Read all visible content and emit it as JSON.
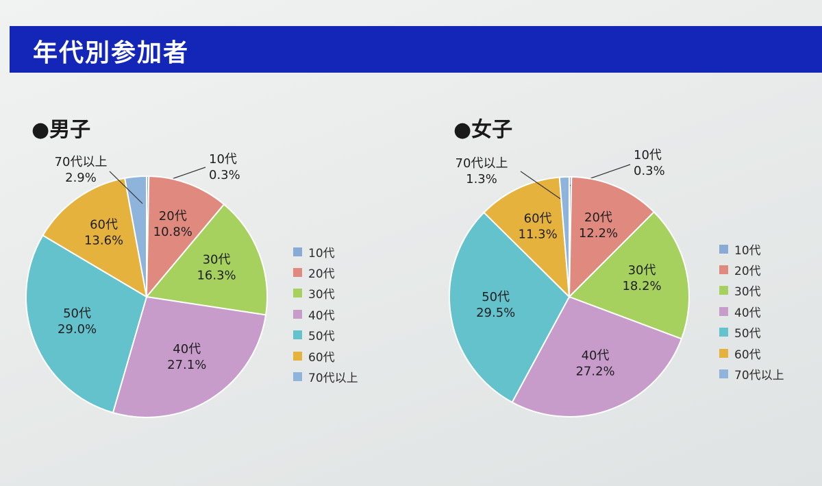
{
  "banner": {
    "title": "年代別参加者"
  },
  "chart_data": [
    {
      "type": "pie",
      "title": "●男子",
      "categories": [
        "10代",
        "20代",
        "30代",
        "40代",
        "50代",
        "60代",
        "70代以上"
      ],
      "values": [
        0.3,
        10.8,
        16.3,
        27.1,
        29.0,
        13.6,
        2.9
      ],
      "value_labels": [
        "0.3%",
        "10.8%",
        "16.3%",
        "27.1%",
        "29.0%",
        "13.6%",
        "2.9%"
      ],
      "colors": [
        "#8aaad6",
        "#e08a7f",
        "#a6d15f",
        "#c79ccb",
        "#63c2cb",
        "#e6b23e",
        "#8fb4dc"
      ],
      "legend": [
        "10代",
        "20代",
        "30代",
        "40代",
        "50代",
        "60代",
        "70代以上"
      ],
      "legend_position": "right"
    },
    {
      "type": "pie",
      "title": "●女子",
      "categories": [
        "10代",
        "20代",
        "30代",
        "40代",
        "50代",
        "60代",
        "70代以上"
      ],
      "values": [
        0.3,
        12.2,
        18.2,
        27.2,
        29.5,
        11.3,
        1.3
      ],
      "value_labels": [
        "0.3%",
        "12.2%",
        "18.2%",
        "27.2%",
        "29.5%",
        "11.3%",
        "1.3%"
      ],
      "colors": [
        "#8aaad6",
        "#e08a7f",
        "#a6d15f",
        "#c79ccb",
        "#63c2cb",
        "#e6b23e",
        "#8fb4dc"
      ],
      "legend": [
        "10代",
        "20代",
        "30代",
        "40代",
        "50代",
        "60代",
        "70代以上"
      ],
      "legend_position": "right"
    }
  ]
}
